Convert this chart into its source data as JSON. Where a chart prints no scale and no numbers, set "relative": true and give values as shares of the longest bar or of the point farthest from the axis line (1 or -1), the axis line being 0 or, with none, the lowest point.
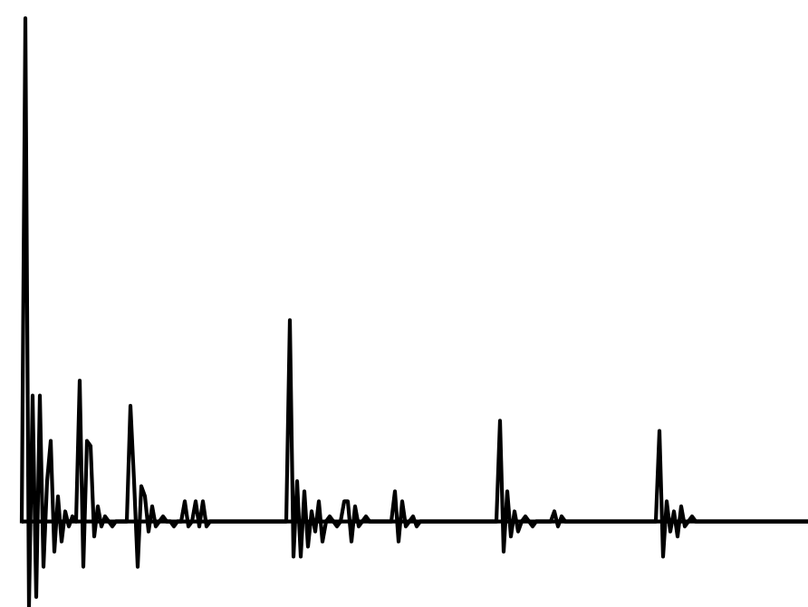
{
  "chart_data": {
    "type": "line",
    "relative": true,
    "color": "#000000",
    "categories": [
      null,
      null,
      null,
      null,
      null,
      null,
      null,
      null,
      null,
      null,
      null,
      null,
      null,
      null,
      null,
      null,
      null,
      null,
      null,
      null,
      null,
      null,
      null,
      null,
      null,
      null,
      null,
      null,
      null,
      null,
      null,
      null,
      null,
      null,
      null,
      null,
      null,
      null,
      null,
      null,
      null,
      null,
      null,
      null,
      null,
      null,
      null,
      null,
      null,
      null,
      null,
      null,
      null,
      null,
      null,
      null,
      null,
      null,
      null,
      null,
      null,
      null,
      null,
      null,
      null,
      null,
      null,
      null,
      null,
      null,
      null,
      null,
      null,
      null,
      null,
      null,
      null,
      null,
      null,
      null,
      null,
      null,
      null,
      null,
      null,
      null,
      null,
      null,
      null,
      null,
      null,
      null,
      null,
      null,
      null,
      null,
      null,
      null,
      null,
      null,
      null,
      null,
      null,
      null,
      null,
      null,
      null,
      null,
      null,
      null,
      null,
      null,
      null,
      null,
      null,
      null,
      null,
      null,
      null,
      null,
      null,
      null,
      null,
      null,
      null,
      null,
      null,
      null,
      null,
      null,
      null,
      null,
      null,
      null,
      null,
      null,
      null,
      null,
      null,
      null,
      null,
      null,
      null,
      null,
      null,
      null,
      null,
      null,
      null,
      null,
      null,
      null,
      null,
      null,
      null,
      null,
      null,
      null,
      null,
      null,
      null,
      null,
      null,
      null,
      null,
      null,
      null,
      null,
      null,
      null,
      null,
      null,
      null,
      null,
      null,
      null,
      null,
      null,
      null,
      null,
      null,
      null,
      null,
      null,
      null,
      null,
      null,
      null,
      null,
      null,
      null,
      null,
      null,
      null,
      null,
      null,
      null,
      null,
      null,
      null,
      null,
      null,
      null,
      null,
      null,
      null,
      null,
      null,
      null,
      null,
      null,
      null,
      null,
      null,
      null,
      null,
      null,
      null
    ],
    "values": [
      0,
      1.0,
      -0.17,
      0.25,
      -0.15,
      0.25,
      -0.09,
      0.08,
      0.16,
      -0.06,
      0.05,
      -0.04,
      0.02,
      -0.01,
      0.01,
      0,
      0.28,
      -0.09,
      0.16,
      0.15,
      -0.03,
      0.03,
      -0.01,
      0.01,
      0,
      -0.01,
      0,
      0,
      0,
      0,
      0.23,
      0.08,
      -0.09,
      0.07,
      0.05,
      -0.02,
      0.03,
      -0.01,
      0,
      0.01,
      0,
      0,
      -0.01,
      0,
      0,
      0.04,
      -0.01,
      0,
      0.04,
      -0.01,
      0.04,
      -0.01,
      0,
      0,
      0,
      0,
      0,
      0,
      0,
      0,
      0,
      0,
      0,
      0,
      0,
      0,
      0,
      0,
      0,
      0,
      0,
      0,
      0,
      0,
      0.4,
      -0.07,
      0.08,
      -0.07,
      0.06,
      -0.05,
      0.02,
      -0.02,
      0.04,
      -0.04,
      0,
      0.01,
      0,
      -0.01,
      0,
      0.04,
      0.04,
      -0.04,
      0.03,
      -0.01,
      0,
      0.01,
      0,
      0,
      0,
      0,
      0,
      0,
      0,
      0.06,
      -0.04,
      0.04,
      -0.01,
      0,
      0.01,
      -0.01,
      0,
      0,
      0,
      0,
      0,
      0,
      0,
      0,
      0,
      0,
      0,
      0,
      0,
      0,
      0,
      0,
      0,
      0,
      0,
      0,
      0,
      0,
      0.2,
      -0.06,
      0.06,
      -0.03,
      0.02,
      -0.02,
      0,
      0.01,
      0,
      -0.01,
      0,
      0,
      0,
      0,
      0,
      0.02,
      -0.01,
      0.01,
      0,
      0,
      0,
      0,
      0,
      0,
      0,
      0,
      0,
      0,
      0,
      0,
      0,
      0,
      0,
      0,
      0,
      0,
      0,
      0,
      0,
      0,
      0,
      0,
      0,
      0,
      0.18,
      -0.07,
      0.04,
      -0.02,
      0.02,
      -0.03,
      0.03,
      -0.01,
      0,
      0.01,
      0,
      0,
      0,
      0,
      0,
      0,
      0,
      0,
      0,
      0,
      0,
      0,
      0,
      0,
      0,
      0,
      0,
      0,
      0,
      0,
      0,
      0,
      0,
      0,
      0,
      0,
      0,
      0,
      0,
      0,
      0,
      0
    ]
  }
}
